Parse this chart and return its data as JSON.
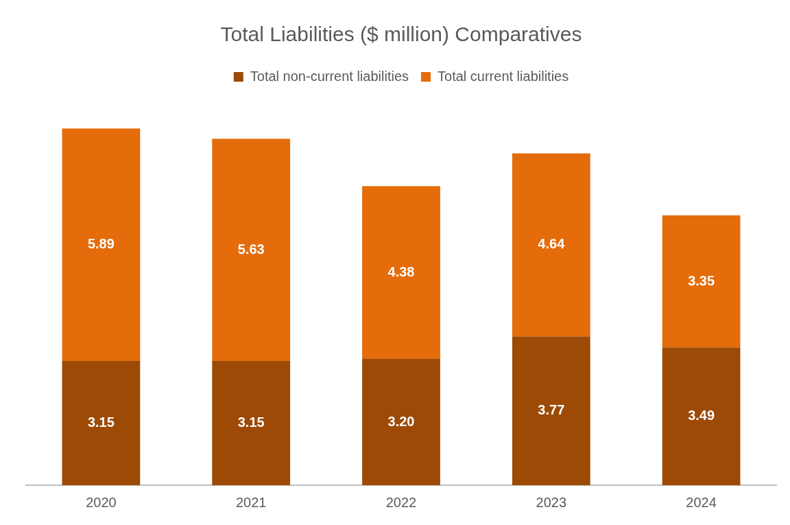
{
  "chart_data": {
    "type": "bar",
    "title": "Total Liabilities ($ million) Comparatives",
    "categories": [
      "2020",
      "2021",
      "2022",
      "2023",
      "2024"
    ],
    "series": [
      {
        "name": "Total non-current liabilities",
        "color": "#9c4a06",
        "values": [
          3.15,
          3.15,
          3.2,
          3.77,
          3.49
        ],
        "value_labels": [
          "3.15",
          "3.15",
          "3.20",
          "3.77",
          "3.49"
        ]
      },
      {
        "name": "Total current liabilities",
        "color": "#e46c0a",
        "values": [
          5.89,
          5.63,
          4.38,
          4.64,
          3.35
        ],
        "value_labels": [
          "5.89",
          "5.63",
          "4.38",
          "4.64",
          "3.35"
        ]
      }
    ],
    "stacked": true,
    "tick_labels": "x",
    "grid": false,
    "legend": "top"
  }
}
